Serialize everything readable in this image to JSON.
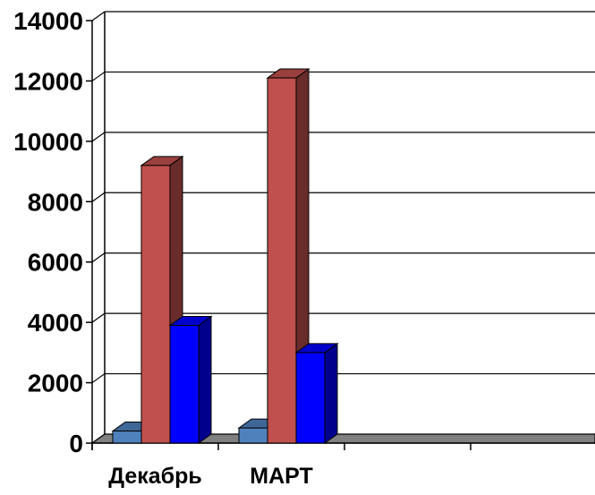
{
  "chart_data": {
    "type": "bar",
    "style": "3d-clustered-column",
    "categories": [
      "Декабрь",
      "МАРТ",
      "",
      ""
    ],
    "series": [
      {
        "color": "#4f81bd",
        "values": [
          400,
          500,
          null,
          null
        ]
      },
      {
        "color": "#c0504d",
        "values": [
          9200,
          12100,
          null,
          null
        ]
      },
      {
        "color": "#0000ff",
        "values": [
          3900,
          3000,
          null,
          null
        ]
      }
    ],
    "ylim": [
      0,
      14000
    ],
    "yticks": [
      0,
      2000,
      4000,
      6000,
      8000,
      10000,
      12000,
      14000
    ],
    "grid": true,
    "legend": "none",
    "title": "",
    "xlabel": "",
    "ylabel": ""
  }
}
